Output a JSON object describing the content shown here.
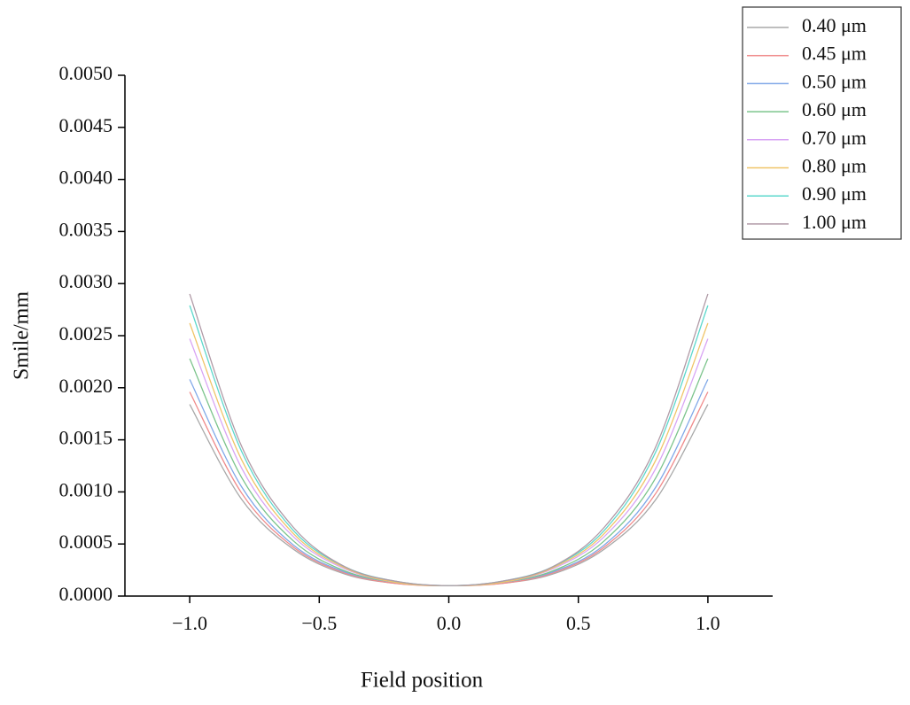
{
  "chart_data": {
    "type": "line",
    "x_label": "Field position",
    "y_label": "Smile/mm",
    "x": [
      -1.0,
      -0.8,
      -0.6,
      -0.4,
      -0.2,
      0.0,
      0.2,
      0.4,
      0.6,
      0.8,
      1.0
    ],
    "series": [
      {
        "name": "0.40 μm",
        "color": "#a8a8a8",
        "values": [
          0.00184,
          0.00093,
          0.00045,
          0.00021,
          0.00012,
          0.0001,
          0.00012,
          0.00021,
          0.00045,
          0.00093,
          0.00184
        ]
      },
      {
        "name": "0.45 μm",
        "color": "#f08a8a",
        "values": [
          0.00196,
          0.00099,
          0.00047,
          0.00022,
          0.00012,
          0.0001,
          0.00012,
          0.00022,
          0.00047,
          0.00099,
          0.00196
        ]
      },
      {
        "name": "0.50 μm",
        "color": "#80a8e8",
        "values": [
          0.00208,
          0.00105,
          0.00049,
          0.00023,
          0.00013,
          0.0001,
          0.00013,
          0.00023,
          0.00049,
          0.00105,
          0.00208
        ]
      },
      {
        "name": "0.60 μm",
        "color": "#7cc48c",
        "values": [
          0.00228,
          0.00114,
          0.00053,
          0.00024,
          0.00013,
          0.0001,
          0.00013,
          0.00024,
          0.00053,
          0.00114,
          0.00228
        ]
      },
      {
        "name": "0.70 μm",
        "color": "#d8a4f4",
        "values": [
          0.00247,
          0.00123,
          0.00057,
          0.00026,
          0.00013,
          0.0001,
          0.00013,
          0.00026,
          0.00057,
          0.00123,
          0.00247
        ]
      },
      {
        "name": "0.80 μm",
        "color": "#f0c468",
        "values": [
          0.00262,
          0.00131,
          0.0006,
          0.00027,
          0.00013,
          0.0001,
          0.00013,
          0.00027,
          0.0006,
          0.00131,
          0.00262
        ]
      },
      {
        "name": "0.90 μm",
        "color": "#5cd8cc",
        "values": [
          0.00279,
          0.00139,
          0.00063,
          0.00028,
          0.00014,
          0.0001,
          0.00014,
          0.00028,
          0.00063,
          0.00139,
          0.00279
        ]
      },
      {
        "name": "1.00 μm",
        "color": "#b09aa6",
        "values": [
          0.0029,
          0.00144,
          0.00066,
          0.00028,
          0.00014,
          0.0001,
          0.00014,
          0.00028,
          0.00066,
          0.00144,
          0.0029
        ]
      }
    ],
    "xlim": [
      -1.25,
      1.25
    ],
    "xticks": [
      {
        "value": -1.0,
        "label": "−1.0"
      },
      {
        "value": -0.5,
        "label": "−0.5"
      },
      {
        "value": 0.0,
        "label": "0.0"
      },
      0.5,
      {
        "value": 1.0,
        "label": "1.0"
      }
    ],
    "ylim": [
      0,
      0.005
    ],
    "yticks": [
      {
        "value": 0,
        "label": "0.0000"
      },
      {
        "value": 0.0005,
        "label": "0.0005"
      },
      {
        "value": 0.001,
        "label": "0.0010"
      },
      {
        "value": 0.0015,
        "label": "0.0015"
      },
      {
        "value": 0.002,
        "label": "0.0020"
      },
      {
        "value": 0.0025,
        "label": "0.0025"
      },
      {
        "value": 0.003,
        "label": "0.0030"
      },
      {
        "value": 0.0035,
        "label": "0.0035"
      },
      {
        "value": 0.004,
        "label": "0.0040"
      },
      {
        "value": 0.0045,
        "label": "0.0045"
      },
      {
        "value": 0.005,
        "label": "0.0050"
      }
    ],
    "legend": "top-right",
    "grid": false
  }
}
